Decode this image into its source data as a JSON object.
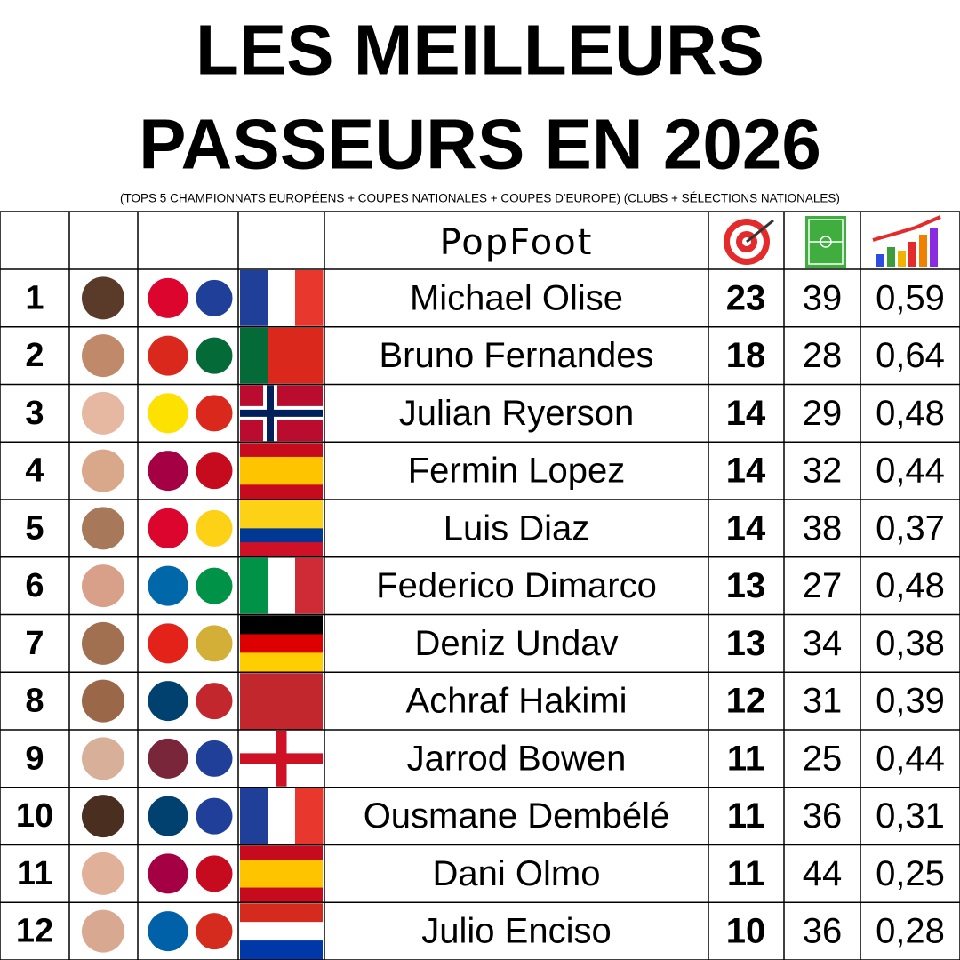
{
  "header": {
    "title_lines": [
      "LES MEILLEURS",
      "PASSEURS EN 2026"
    ],
    "subtitle": "(TOPS 5 CHAMPIONNATS EUROPÉENS + COUPES NATIONALES + COUPES D'EUROPE) (CLUBS + SÉLECTIONS NATIONALES)",
    "logo": "PopFoot"
  },
  "table": {
    "rows": [
      {
        "rank": 1,
        "name": "Michael Olise",
        "assists": 23,
        "matches": 39,
        "ratio": "0,59"
      },
      {
        "rank": 2,
        "name": "Bruno Fernandes",
        "assists": 18,
        "matches": 28,
        "ratio": "0,64"
      },
      {
        "rank": 3,
        "name": "Julian Ryerson",
        "assists": 14,
        "matches": 29,
        "ratio": "0,48"
      },
      {
        "rank": 4,
        "name": "Fermin Lopez",
        "assists": 14,
        "matches": 32,
        "ratio": "0,44"
      },
      {
        "rank": 5,
        "name": "Luis Diaz",
        "assists": 14,
        "matches": 38,
        "ratio": "0,37"
      },
      {
        "rank": 6,
        "name": "Federico Dimarco",
        "assists": 13,
        "matches": 27,
        "ratio": "0,48"
      },
      {
        "rank": 7,
        "name": "Deniz Undav",
        "assists": 13,
        "matches": 34,
        "ratio": "0,38"
      },
      {
        "rank": 8,
        "name": "Achraf Hakimi",
        "assists": 12,
        "matches": 31,
        "ratio": "0,39"
      },
      {
        "rank": 9,
        "name": "Jarrod Bowen",
        "assists": 11,
        "matches": 25,
        "ratio": "0,44"
      },
      {
        "rank": 10,
        "name": "Ousmane Dembélé",
        "assists": 11,
        "matches": 36,
        "ratio": "0,31"
      },
      {
        "rank": 11,
        "name": "Dani Olmo",
        "assists": 11,
        "matches": 44,
        "ratio": "0,25"
      },
      {
        "rank": 12,
        "name": "Julio Enciso",
        "assists": 10,
        "matches": 36,
        "ratio": "0,28"
      }
    ]
  }
}
